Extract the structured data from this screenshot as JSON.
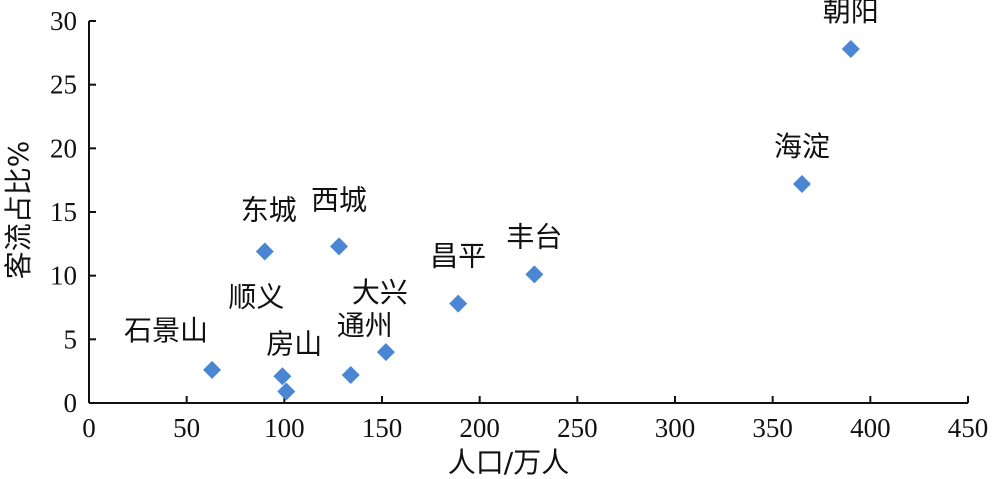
{
  "chart_data": {
    "type": "scatter",
    "title": "",
    "xlabel": "人口/万人",
    "ylabel": "客流占比%",
    "xlim": [
      0,
      450
    ],
    "ylim": [
      0,
      30
    ],
    "x_ticks": [
      0,
      50,
      100,
      150,
      200,
      250,
      300,
      350,
      400,
      450
    ],
    "y_ticks": [
      0,
      5,
      10,
      15,
      20,
      25,
      30
    ],
    "grid": false,
    "marker_color": "#4a86d4",
    "points": [
      {
        "name": "朝阳",
        "x": 390,
        "y": 27.8
      },
      {
        "name": "海淀",
        "x": 365,
        "y": 17.2
      },
      {
        "name": "丰台",
        "x": 228,
        "y": 10.1
      },
      {
        "name": "昌平",
        "x": 189,
        "y": 7.8
      },
      {
        "name": "大兴",
        "x": 152,
        "y": 4.0
      },
      {
        "name": "通州",
        "x": 134,
        "y": 2.2
      },
      {
        "name": "西城",
        "x": 128,
        "y": 12.3
      },
      {
        "name": "东城",
        "x": 90,
        "y": 11.9
      },
      {
        "name": "顺义",
        "x": 99,
        "y": 2.1
      },
      {
        "name": "房山",
        "x": 101,
        "y": 0.9
      },
      {
        "name": "石景山",
        "x": 63,
        "y": 2.6
      }
    ]
  }
}
